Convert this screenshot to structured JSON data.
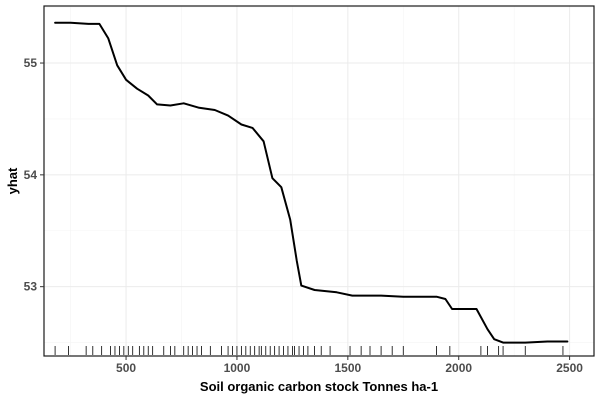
{
  "chart_data": {
    "type": "line",
    "title": "",
    "xlabel": "Soil organic carbon stock Tonnes ha-1",
    "ylabel": "yhat",
    "xlim": [
      130,
      2610
    ],
    "ylim": [
      52.38,
      55.51
    ],
    "xticks": [
      500,
      1000,
      1500,
      2000,
      2500
    ],
    "yticks": [
      53,
      54,
      55
    ],
    "grid": true,
    "legend": "none",
    "series": [
      {
        "color": "#000000",
        "points": [
          [
            180,
            55.36
          ],
          [
            250,
            55.36
          ],
          [
            330,
            55.35
          ],
          [
            380,
            55.35
          ],
          [
            420,
            55.22
          ],
          [
            460,
            54.98
          ],
          [
            500,
            54.85
          ],
          [
            550,
            54.77
          ],
          [
            600,
            54.71
          ],
          [
            640,
            54.63
          ],
          [
            700,
            54.62
          ],
          [
            760,
            54.64
          ],
          [
            830,
            54.6
          ],
          [
            900,
            54.58
          ],
          [
            960,
            54.53
          ],
          [
            1020,
            54.45
          ],
          [
            1070,
            54.42
          ],
          [
            1120,
            54.3
          ],
          [
            1160,
            53.97
          ],
          [
            1200,
            53.89
          ],
          [
            1240,
            53.6
          ],
          [
            1270,
            53.23
          ],
          [
            1290,
            53.01
          ],
          [
            1350,
            52.97
          ],
          [
            1450,
            52.95
          ],
          [
            1520,
            52.92
          ],
          [
            1650,
            52.92
          ],
          [
            1750,
            52.91
          ],
          [
            1900,
            52.91
          ],
          [
            1940,
            52.89
          ],
          [
            1970,
            52.8
          ],
          [
            2080,
            52.8
          ],
          [
            2130,
            52.62
          ],
          [
            2160,
            52.53
          ],
          [
            2200,
            52.5
          ],
          [
            2300,
            52.5
          ],
          [
            2400,
            52.51
          ],
          [
            2490,
            52.51
          ]
        ]
      }
    ],
    "rug_x": [
      180,
      240,
      320,
      350,
      390,
      430,
      450,
      470,
      490,
      510,
      530,
      560,
      580,
      600,
      620,
      670,
      700,
      720,
      760,
      780,
      800,
      820,
      840,
      880,
      930,
      960,
      980,
      1000,
      1020,
      1040,
      1060,
      1080,
      1100,
      1110,
      1130,
      1150,
      1170,
      1190,
      1210,
      1230,
      1250,
      1260,
      1280,
      1300,
      1320,
      1350,
      1380,
      1420,
      1510,
      1560,
      1600,
      1650,
      1700,
      1750,
      1900,
      1960,
      2100,
      2130,
      2180,
      2200,
      2300,
      2470
    ]
  }
}
